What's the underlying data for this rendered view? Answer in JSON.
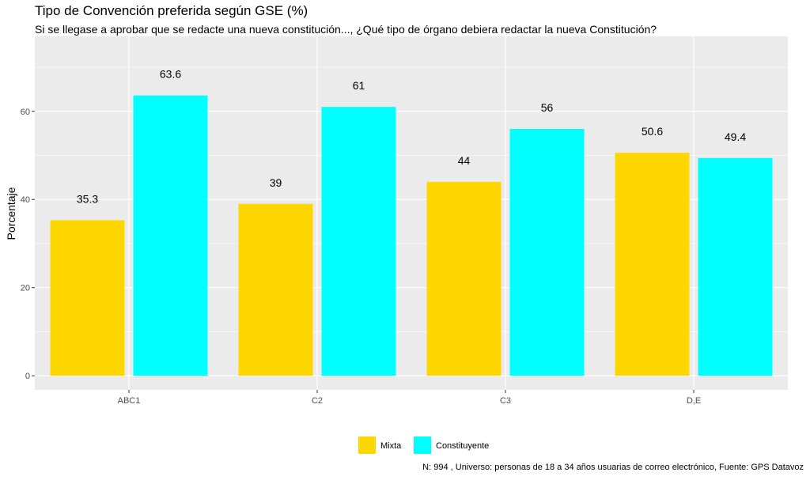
{
  "chart_data": {
    "type": "bar",
    "title": "Tipo de Convención preferida según GSE (%)",
    "subtitle": "Si se llegase a aprobar que se redacte una nueva constitución..., ¿Qué tipo de órgano debiera redactar la nueva Constitución?",
    "caption": "N: 994 , Universo: personas de 18 a 34 años usuarias de correo electrónico, Fuente: GPS Datavoz",
    "xlabel": "",
    "ylabel": "Porcentaje",
    "categories": [
      "ABC1",
      "C2",
      "C3",
      "D,E"
    ],
    "series": [
      {
        "name": "Mixta",
        "color": "#FFD700",
        "values": [
          35.3,
          39,
          44,
          50.6
        ],
        "labels": [
          "35.3",
          "39",
          "44",
          "50.6"
        ]
      },
      {
        "name": "Constituyente",
        "color": "#00FFFF",
        "values": [
          63.6,
          61,
          56,
          49.4
        ],
        "labels": [
          "63.6",
          "61",
          "56",
          "49.4"
        ]
      }
    ],
    "ylim": [
      -3.2,
      77
    ],
    "yticks": [
      0,
      20,
      40,
      60
    ],
    "grid": true,
    "legend": "bottom"
  }
}
